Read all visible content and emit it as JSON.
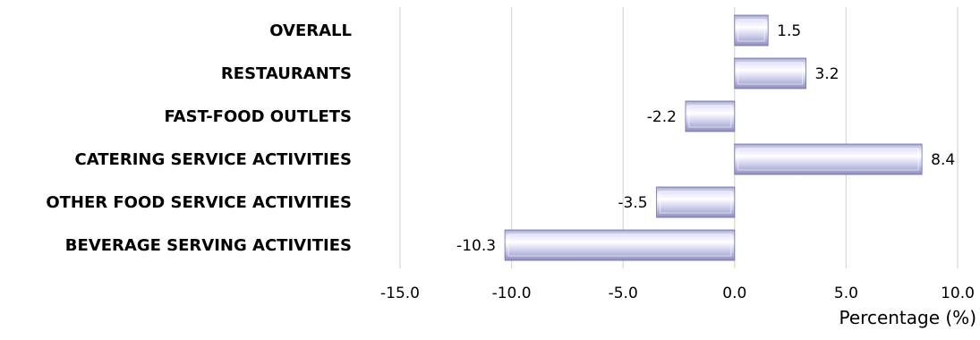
{
  "chart_data": {
    "type": "bar",
    "orientation": "horizontal",
    "categories": [
      "OVERALL",
      "RESTAURANTS",
      "FAST-FOOD OUTLETS",
      "CATERING SERVICE ACTIVITIES",
      "OTHER FOOD SERVICE ACTIVITIES",
      "BEVERAGE SERVING ACTIVITIES"
    ],
    "values": [
      1.5,
      3.2,
      -2.2,
      8.4,
      -3.5,
      -10.3
    ],
    "data_labels": [
      "1.5",
      "3.2",
      "-2.2",
      "8.4",
      "-3.5",
      "-10.3"
    ],
    "xlim": [
      -15.0,
      10.0
    ],
    "xticks": [
      -15.0,
      -10.0,
      -5.0,
      0.0,
      5.0,
      10.0
    ],
    "xtick_labels": [
      "-15.0",
      "-10.0",
      "-5.0",
      "0.0",
      "5.0",
      "10.0"
    ],
    "xlabel": "Percentage (%)",
    "grid": true,
    "bar_color": "#c8c8ec"
  }
}
